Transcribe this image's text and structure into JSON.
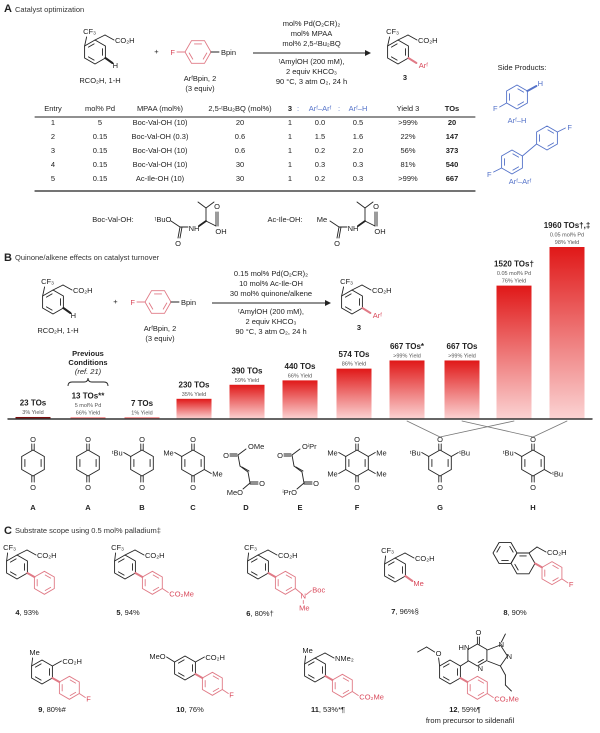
{
  "colors": {
    "aryl": "#e07a86",
    "aryl_text": "#d9485a",
    "side_product": "#5573c9",
    "bar_top": "#e01818",
    "bar_bottom": "#fbd3d3",
    "bar_first": "#7a0c0c"
  },
  "panel_a": {
    "letter": "A",
    "title": "Catalyst optimization",
    "reactant": {
      "cf3": "CF₃",
      "co2h": "CO₂H",
      "h": "H",
      "label": "RCO₂H, 1-H"
    },
    "plus": "+",
    "boronate": {
      "f": "F",
      "bpin": "Bpin",
      "label": "ArᶠBpin, 2",
      "equiv": "(3 equiv)"
    },
    "conditions_above": [
      "mol% Pd(O₂CR)₂",
      "mol% MPAA",
      "mol% 2,5-ᵗBu₂BQ"
    ],
    "conditions_below": [
      "ᵗAmylOH (200 mM),",
      "2 equiv KHCO₃",
      "90 °C, 3 atm O₂, 24 h"
    ],
    "product": {
      "cf3": "CF₃",
      "co2h": "CO₂H",
      "ar": "Arᶠ",
      "label": "3"
    },
    "side_products": {
      "title": "Side Products:",
      "h": "H",
      "f1": "F",
      "arh": "Arᶠ–H",
      "f2": "F",
      "f3": "F",
      "arar": "Arᶠ–Arᶠ"
    },
    "table": {
      "headers": [
        "Entry",
        "mol% Pd",
        "MPAA (mol%)",
        "2,5-ᵗBu₂BQ (mol%)",
        "3",
        ":",
        "Arᶠ–Arᶠ",
        ":",
        "Arᶠ–H",
        "Yield 3",
        "TOs"
      ],
      "rows": [
        [
          "1",
          "5",
          "Boc-Val-OH (10)",
          "20",
          "1",
          "0.0",
          "0.5",
          ">99%",
          "20"
        ],
        [
          "2",
          "0.15",
          "Boc-Val-OH (0.3)",
          "0.6",
          "1",
          "1.5",
          "1.6",
          "22%",
          "147"
        ],
        [
          "3",
          "0.15",
          "Boc-Val-OH (10)",
          "0.6",
          "1",
          "0.2",
          "2.0",
          "56%",
          "373"
        ],
        [
          "4",
          "0.15",
          "Boc-Val-OH (10)",
          "30",
          "1",
          "0.3",
          "0.3",
          "81%",
          "540"
        ],
        [
          "5",
          "0.15",
          "Ac-Ile-OH (10)",
          "30",
          "1",
          "0.2",
          "0.3",
          ">99%",
          "667"
        ]
      ]
    },
    "ligands": {
      "boc": {
        "label": "Boc-Val-OH:",
        "head": "ᵗBuO",
        "o1": "O",
        "nh": "NH",
        "o2": "O",
        "oh": "OH"
      },
      "ac": {
        "label": "Ac-Ile-OH:",
        "head": "Me",
        "o1": "O",
        "nh": "NH",
        "o2": "O",
        "oh": "OH"
      }
    }
  },
  "panel_b": {
    "letter": "B",
    "title": "Quinone/alkene effects on catalyst turnover",
    "reactant": {
      "cf3": "CF₃",
      "co2h": "CO₂H",
      "h": "H",
      "label": "RCO₂H, 1-H"
    },
    "plus": "+",
    "boronate": {
      "f": "F",
      "bpin": "Bpin",
      "label": "ArᶠBpin, 2",
      "equiv": "(3 equiv)"
    },
    "conditions_above": [
      "0.15 mol% Pd(O₂CR)₂",
      "10 mol% Ac-Ile-OH",
      "30 mol% quinone/alkene"
    ],
    "conditions_below": [
      "ᵗAmylOH (200 mM),",
      "2 equiv KHCO₃",
      "90 °C, 3 atm O₂, 24 h"
    ],
    "product": {
      "cf3": "CF₃",
      "co2h": "CO₂H",
      "ar": "Arᶠ",
      "label": "3"
    },
    "previous": [
      "Previous",
      "Conditions",
      "(ref. 21)"
    ],
    "quinones": [
      {
        "label": "A",
        "o_top": "O",
        "o_bottom": "O",
        "subs": []
      },
      {
        "label": "A",
        "o_top": "O",
        "o_bottom": "O",
        "subs": []
      },
      {
        "label": "B",
        "o_top": "O",
        "o_bottom": "O",
        "subs": [
          "ᵗBu"
        ]
      },
      {
        "label": "C",
        "o_top": "O",
        "o_bottom": "O",
        "subs": [
          "Me",
          "Me"
        ]
      },
      {
        "label": "D",
        "o_top": "O",
        "o_bottom": "O",
        "subs": [
          "OMe",
          "MeO"
        ]
      },
      {
        "label": "E",
        "o_top": "O",
        "o_bottom": "O",
        "subs": [
          "OⁱPr",
          "ⁱPrO"
        ]
      },
      {
        "label": "F",
        "o_top": "O",
        "o_bottom": "O",
        "subs": [
          "Me",
          "Me",
          "Me",
          "Me"
        ]
      },
      {
        "label": "G",
        "o_top": "O",
        "o_bottom": "O",
        "subs": [
          "ᵗBu",
          "ᵗBu"
        ]
      },
      {
        "label": "H",
        "o_top": "O",
        "o_bottom": "O",
        "subs": [
          "ᵗBu",
          "ᵗBu"
        ]
      }
    ]
  },
  "chart_data": {
    "type": "bar",
    "categories": [
      "A",
      "A",
      "B",
      "C",
      "D",
      "E",
      "F",
      "G",
      "H",
      "G",
      "H"
    ],
    "values": [
      23,
      13,
      7,
      230,
      390,
      440,
      574,
      667,
      667,
      1520,
      1960
    ],
    "unit": "TOs",
    "labels": [
      "23 TOs",
      "13 TOs**",
      "7 TOs",
      "230 TOs",
      "390 TOs",
      "440 TOs",
      "574 TOs",
      "667 TOs*",
      "667 TOs",
      "1520 TOs†",
      "1960 TOs†,‡"
    ],
    "notes": [
      [
        "3% Yield"
      ],
      [
        "5 mol% Pd",
        "66% Yield"
      ],
      [
        "1% Yield"
      ],
      [
        "35% Yield"
      ],
      [
        "59% Yield"
      ],
      [
        "66% Yield"
      ],
      [
        "86% Yield"
      ],
      [
        ">99% Yield"
      ],
      [
        ">99% Yield"
      ],
      [
        "0.05 mol% Pd",
        "76% Yield"
      ],
      [
        "0.05 mol% Pd",
        "98% Yield"
      ]
    ],
    "ylim": [
      0,
      1960
    ],
    "grid": false,
    "axis_labels_shown": false
  },
  "panel_c": {
    "letter": "C",
    "title": "Substrate scope using 0.5 mol% palladium‡",
    "compounds": [
      {
        "number": "4",
        "yield": ", 93%",
        "top": "CF₃",
        "acid": "CO₂H"
      },
      {
        "number": "5",
        "yield": ", 94%",
        "top": "CF₃",
        "acid": "CO₂H",
        "para": "CO₂Me"
      },
      {
        "number": "6",
        "yield": ", 80%†",
        "top": "CF₃",
        "acid": "CO₂H",
        "n": "N",
        "boc": "Boc",
        "me": "Me"
      },
      {
        "number": "7",
        "yield": ", 96%§",
        "top": "CF₃",
        "acid": "CO₂H",
        "me": "Me"
      },
      {
        "number": "8",
        "yield": ", 90%",
        "acid": "CO₂H",
        "para": "F"
      },
      {
        "number": "9",
        "yield": ", 80%#",
        "top": "Me",
        "acid": "CO₂H",
        "para": "F"
      },
      {
        "number": "10",
        "yield": ", 76%",
        "top": "MeO",
        "acid": "CO₂H",
        "para": "F"
      },
      {
        "number": "11",
        "yield": ", 53%*¶",
        "top": "Me",
        "acid": "NMe₂",
        "para": "CO₂Me"
      },
      {
        "number": "12",
        "yield": ", 59%¶",
        "note": "from precursor to sildenafil",
        "o": "O",
        "hn": "HN",
        "o2": "O",
        "n1": "N",
        "n2": "N",
        "n3": "N",
        "para": "CO₂Me"
      }
    ]
  }
}
